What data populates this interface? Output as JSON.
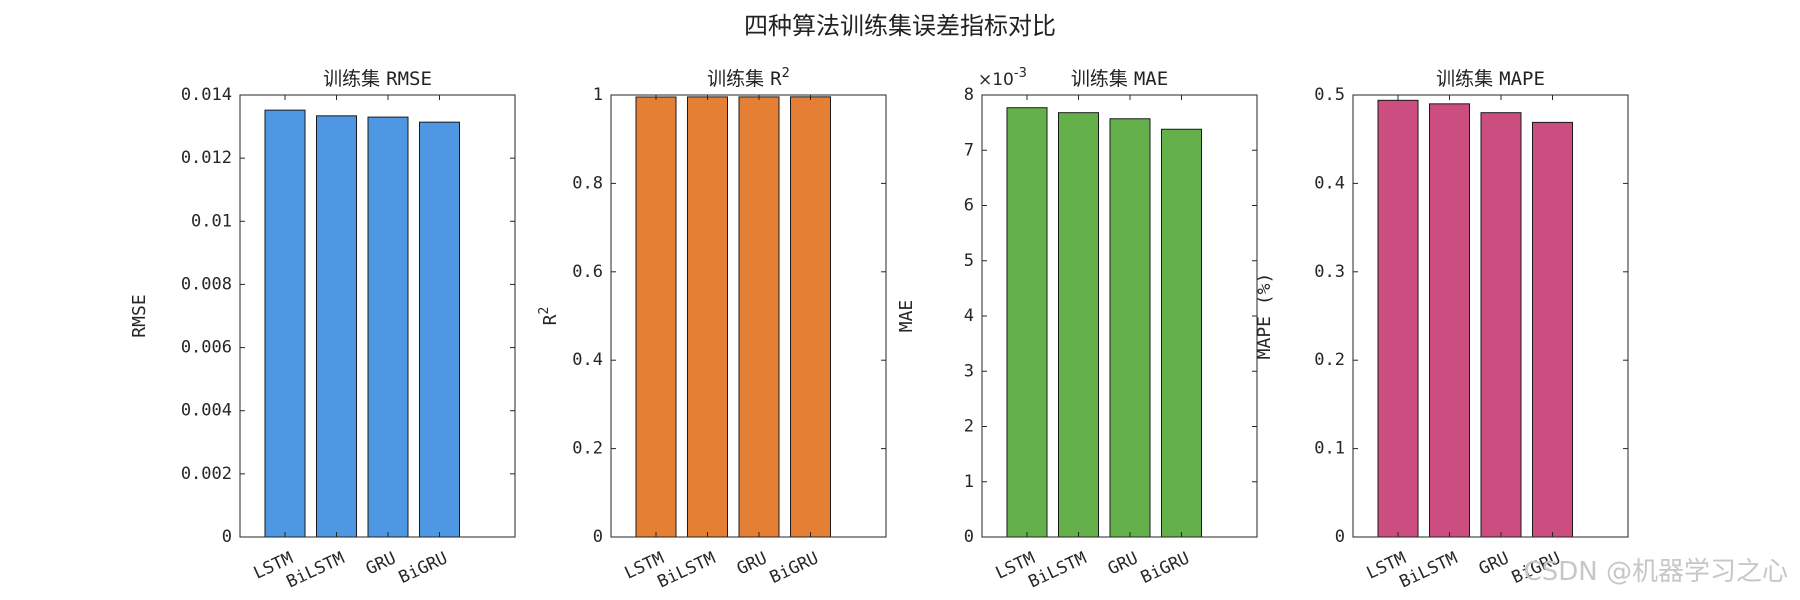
{
  "figure_title": "四种算法训练集误差指标对比",
  "watermark": "CSDN @机器学习之心",
  "colors": {
    "rmse": "#4d97e3",
    "r2": "#e47f33",
    "mae": "#64b14b",
    "mape": "#cc4e80"
  },
  "chart_data": [
    {
      "type": "bar",
      "title_prefix": "训练集",
      "title_metric": "RMSE",
      "ylabel": "RMSE",
      "categories": [
        "LSTM",
        "BiLSTM",
        "GRU",
        "BiGRU"
      ],
      "values": [
        0.01352,
        0.01334,
        0.0133,
        0.01314
      ],
      "ylim": [
        0,
        0.014
      ],
      "yticks": [
        0,
        0.002,
        0.004,
        0.006,
        0.008,
        0.01,
        0.012,
        0.014
      ],
      "ytick_labels": [
        "0",
        "0.002",
        "0.004",
        "0.006",
        "0.008",
        "0.01",
        "0.012",
        "0.014"
      ],
      "exponent_label": "",
      "color": "#4d97e3",
      "grid": false
    },
    {
      "type": "bar",
      "title_prefix": "训练集",
      "title_metric": "R",
      "title_superscript": "2",
      "ylabel": "R",
      "ylabel_superscript": "2",
      "categories": [
        "LSTM",
        "BiLSTM",
        "GRU",
        "BiGRU"
      ],
      "values": [
        0.9955,
        0.9957,
        0.9957,
        0.9958
      ],
      "ylim": [
        0,
        1
      ],
      "yticks": [
        0,
        0.2,
        0.4,
        0.6,
        0.8,
        1
      ],
      "ytick_labels": [
        "0",
        "0.2",
        "0.4",
        "0.6",
        "0.8",
        "1"
      ],
      "exponent_label": "",
      "color": "#e47f33",
      "grid": false
    },
    {
      "type": "bar",
      "title_prefix": "训练集",
      "title_metric": "MAE",
      "ylabel": "MAE",
      "categories": [
        "LSTM",
        "BiLSTM",
        "GRU",
        "BiGRU"
      ],
      "values": [
        0.00777,
        0.00768,
        0.00757,
        0.00738
      ],
      "ylim": [
        0,
        0.008
      ],
      "yticks": [
        0,
        0.001,
        0.002,
        0.003,
        0.004,
        0.005,
        0.006,
        0.007,
        0.008
      ],
      "ytick_labels": [
        "0",
        "1",
        "2",
        "3",
        "4",
        "5",
        "6",
        "7",
        "8"
      ],
      "exponent_base": "×10",
      "exponent_power": "-3",
      "color": "#64b14b",
      "grid": false
    },
    {
      "type": "bar",
      "title_prefix": "训练集",
      "title_metric": "MAPE",
      "ylabel": "MAPE (%)",
      "categories": [
        "LSTM",
        "BiLSTM",
        "GRU",
        "BiGRU"
      ],
      "values": [
        0.494,
        0.49,
        0.48,
        0.469
      ],
      "ylim": [
        0,
        0.5
      ],
      "yticks": [
        0,
        0.1,
        0.2,
        0.3,
        0.4,
        0.5
      ],
      "ytick_labels": [
        "0",
        "0.1",
        "0.2",
        "0.3",
        "0.4",
        "0.5"
      ],
      "exponent_label": "",
      "color": "#cc4e80",
      "grid": false
    }
  ]
}
